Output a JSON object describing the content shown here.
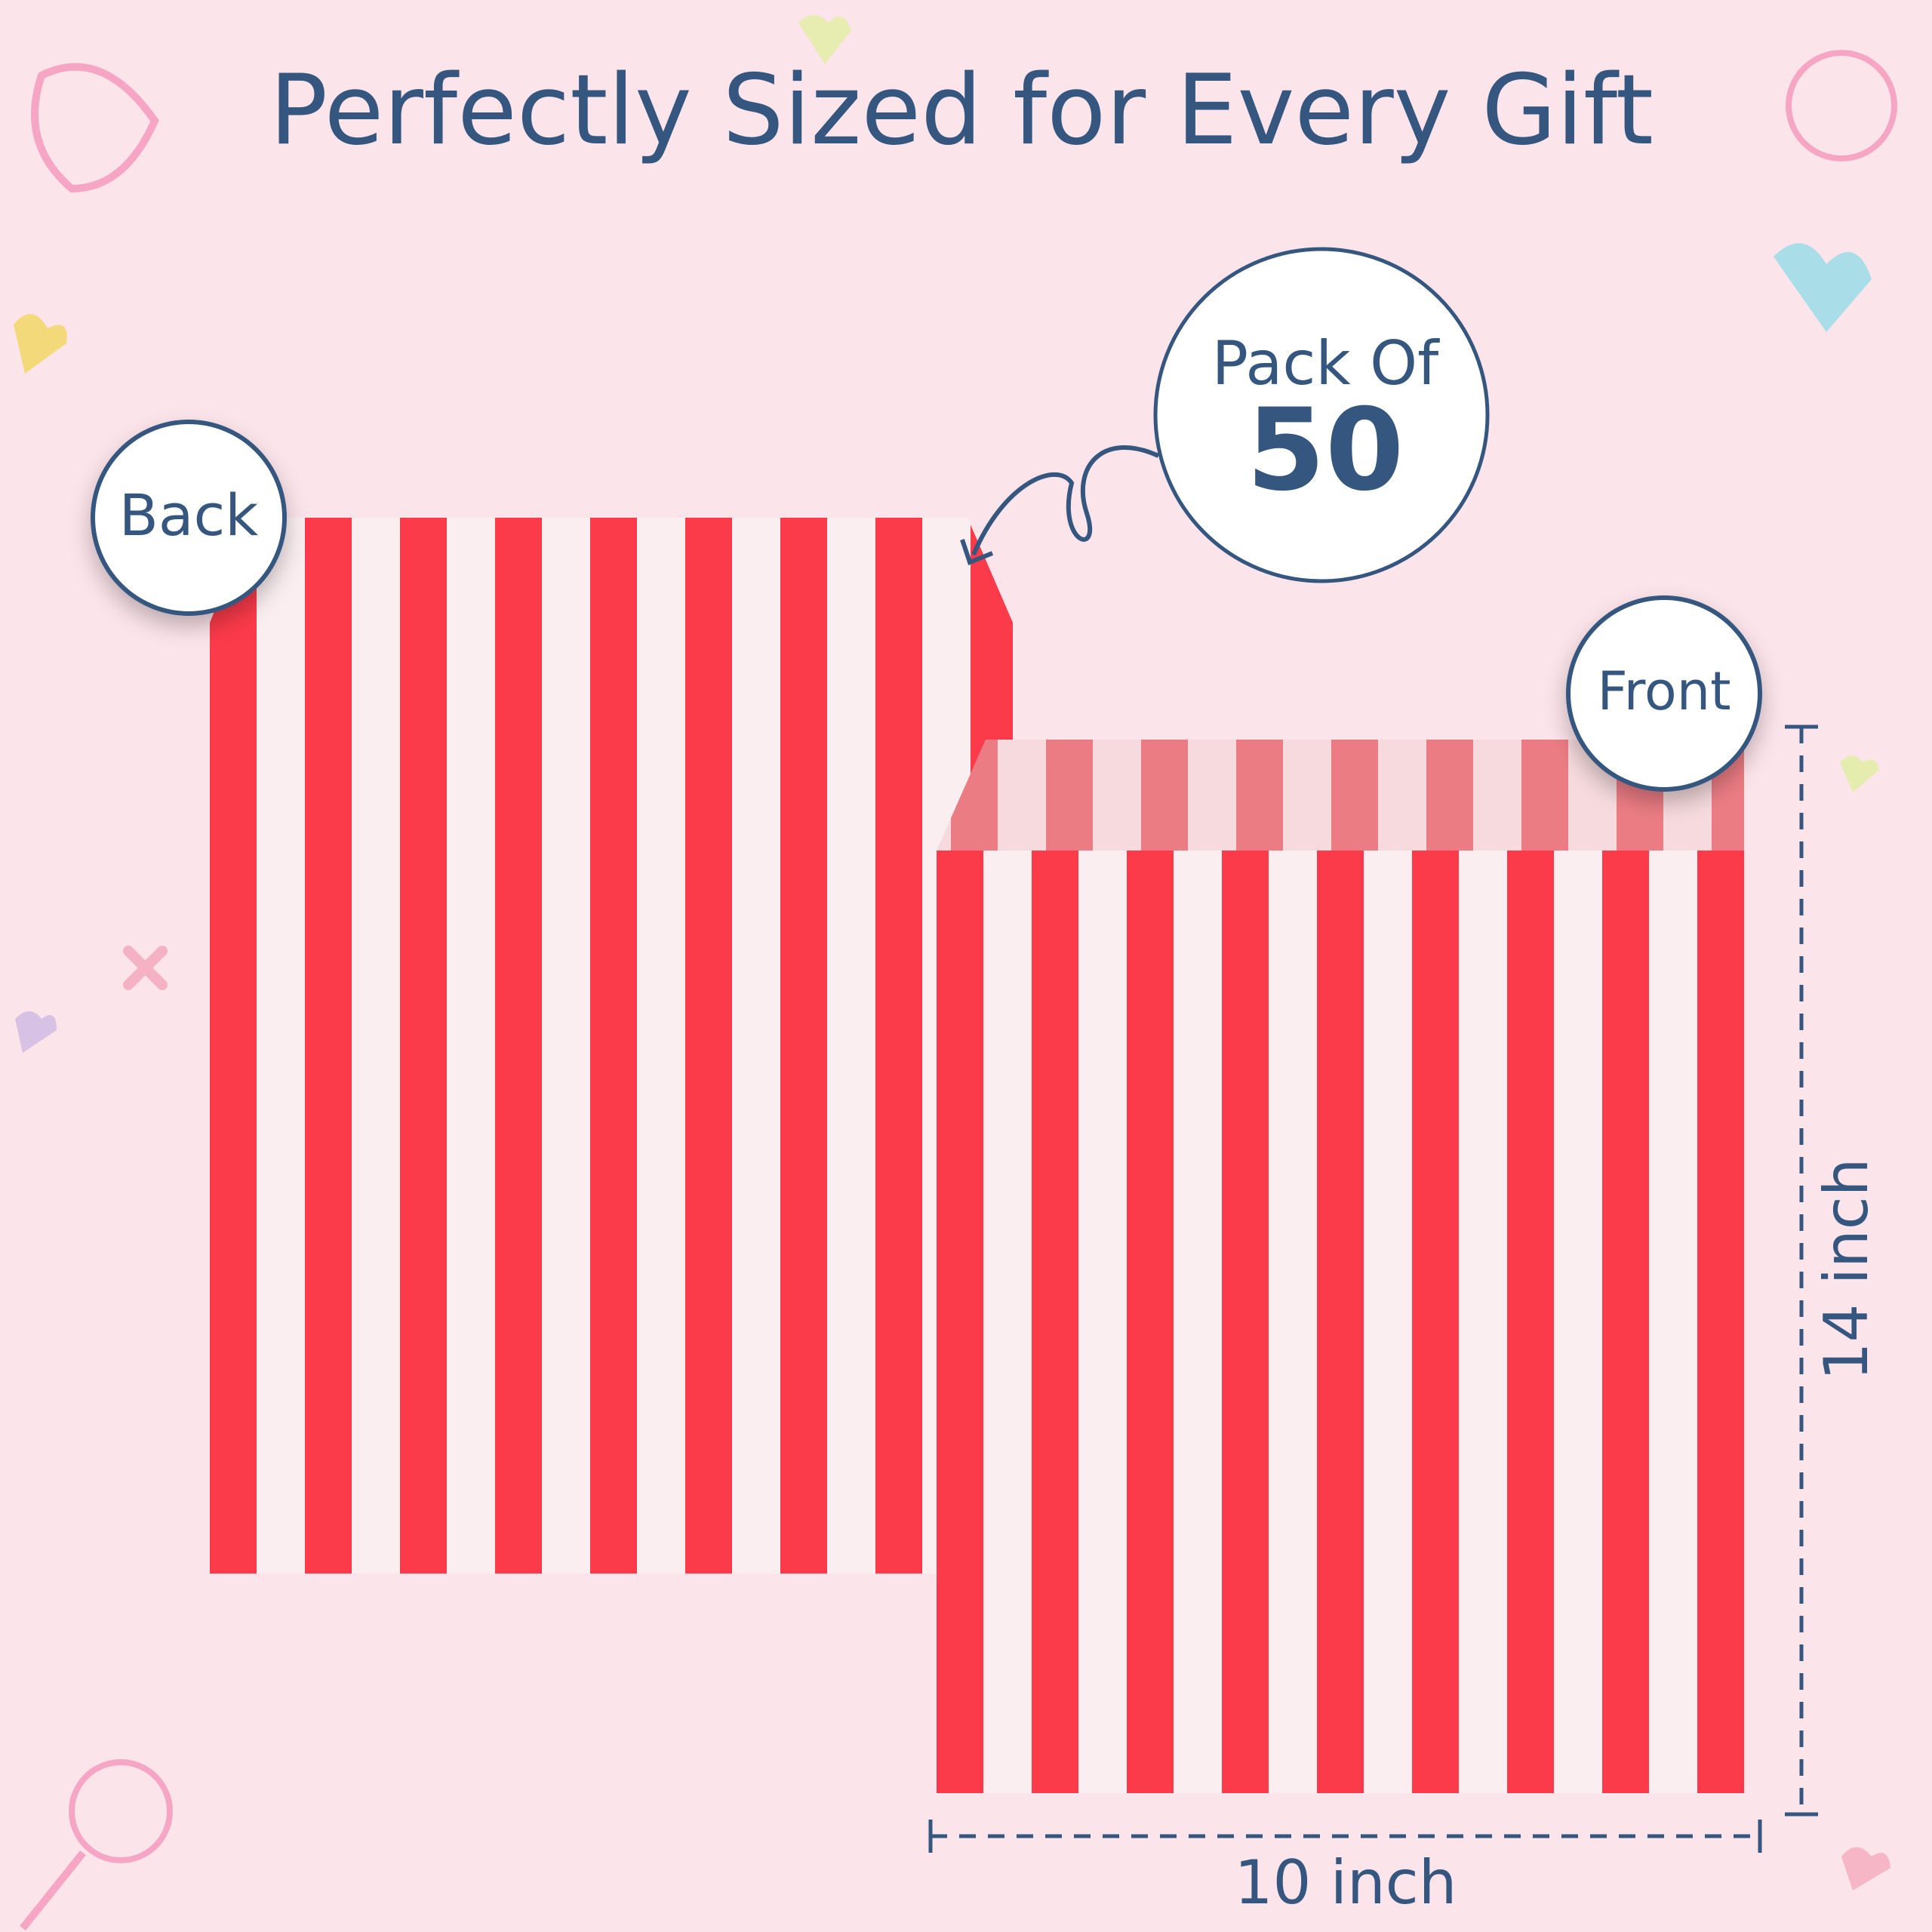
{
  "title": "Perfectly Sized for Every Gift",
  "badge": {
    "label": "Pack Of",
    "count": 50
  },
  "labels": {
    "back": "Back",
    "front": "Front"
  },
  "dimensions": {
    "height": "14 inch",
    "width": "10 inch"
  }
}
